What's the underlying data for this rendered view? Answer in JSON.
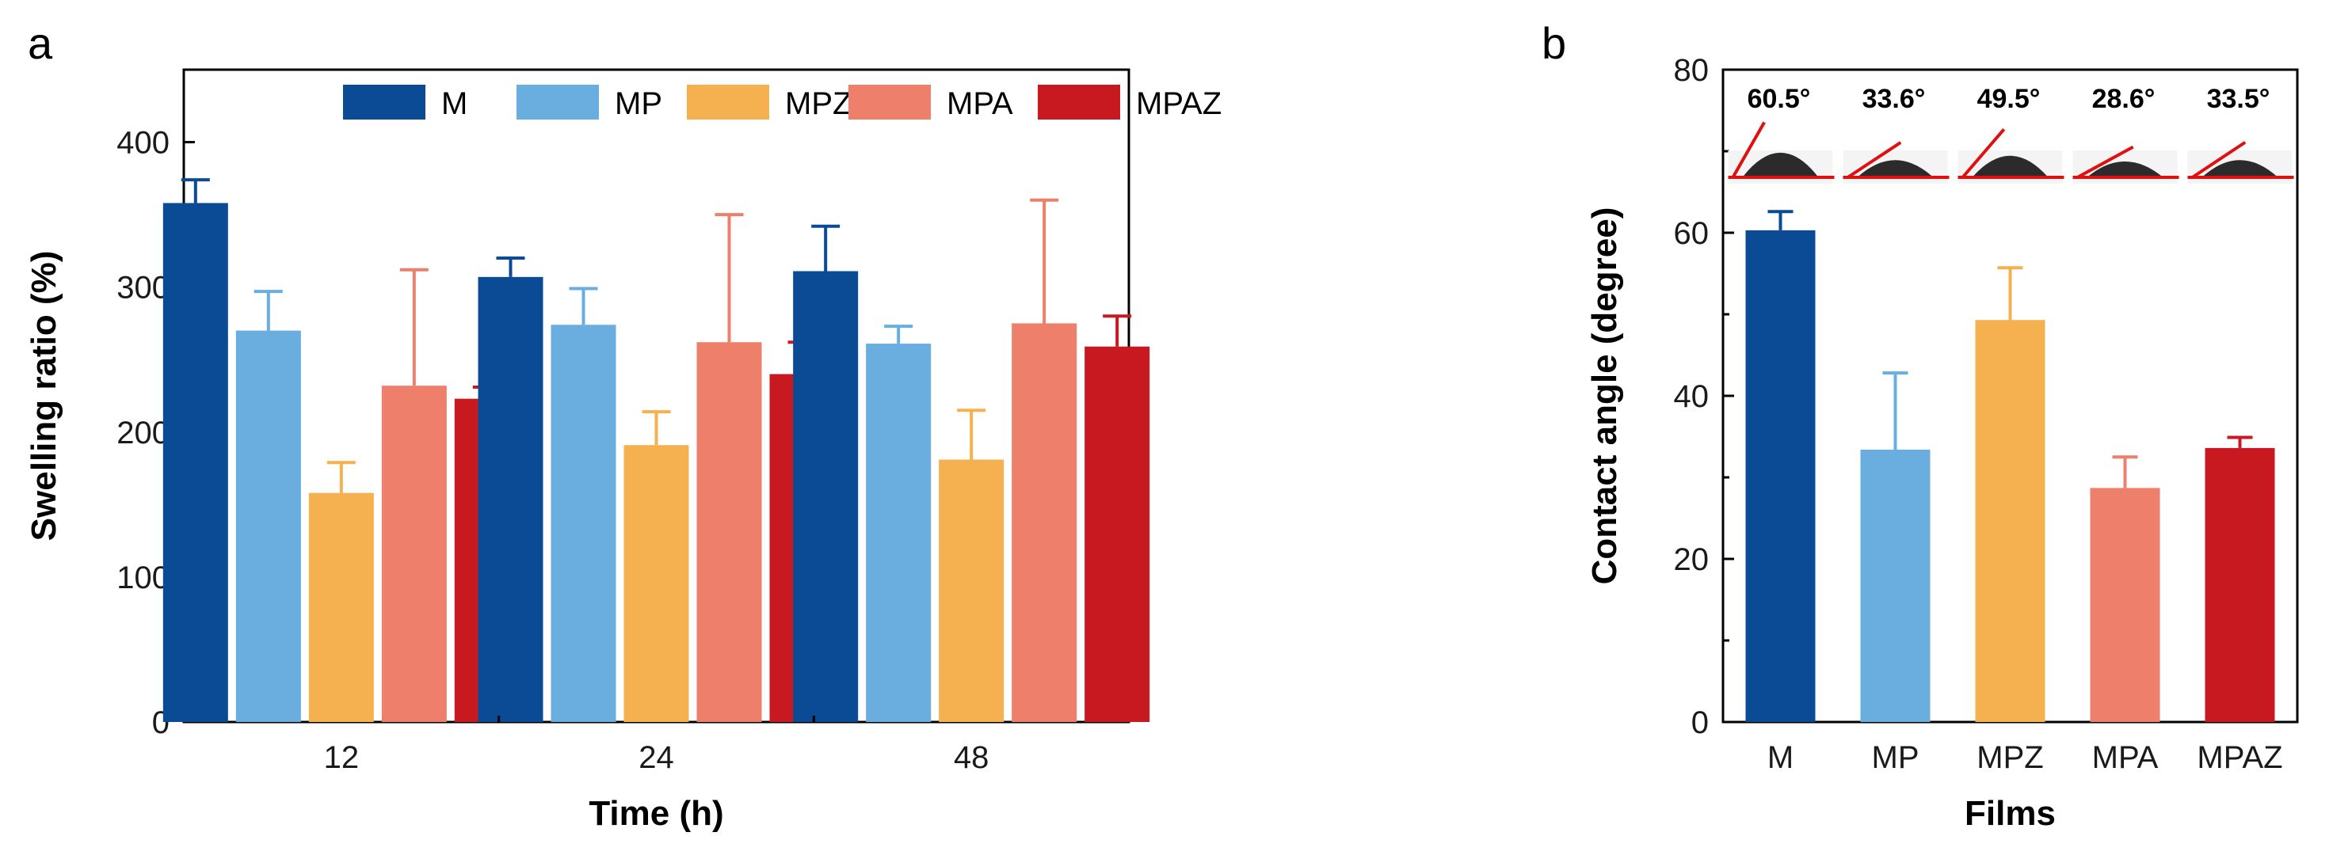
{
  "chart_data": [
    {
      "panel": "a",
      "type": "bar",
      "title": "",
      "xlabel": "Time (h)",
      "ylabel": "Swelling ratio (%)",
      "ylim": [
        0,
        450
      ],
      "yticks": [
        0,
        100,
        200,
        300,
        400
      ],
      "categories": [
        "12",
        "24",
        "48"
      ],
      "legend_position": "top",
      "series": [
        {
          "name": "M",
          "color": "#0b4a94",
          "values": [
            358,
            307,
            311
          ],
          "errors": [
            16,
            13,
            31
          ]
        },
        {
          "name": "MP",
          "color": "#6aaee0",
          "values": [
            270,
            274,
            261
          ],
          "errors": [
            27,
            25,
            12
          ]
        },
        {
          "name": "MPZ",
          "color": "#f5b04f",
          "values": [
            158,
            191,
            181
          ],
          "errors": [
            21,
            23,
            34
          ]
        },
        {
          "name": "MPA",
          "color": "#ee7f6a",
          "values": [
            232,
            262,
            275
          ],
          "errors": [
            80,
            88,
            85
          ]
        },
        {
          "name": "MPAZ",
          "color": "#c81820",
          "values": [
            223,
            240,
            259
          ],
          "errors": [
            8,
            22,
            21
          ]
        }
      ]
    },
    {
      "panel": "b",
      "type": "bar",
      "title": "",
      "xlabel": "Films",
      "ylabel": "Contact angle (degree)",
      "ylim": [
        0,
        80
      ],
      "yticks": [
        0,
        20,
        40,
        60,
        80
      ],
      "categories": [
        "M",
        "MP",
        "MPZ",
        "MPA",
        "MPAZ"
      ],
      "values": [
        60.3,
        33.4,
        49.3,
        28.7,
        33.6
      ],
      "errors": [
        2.3,
        9.4,
        6.4,
        3.8,
        1.3
      ],
      "colors": [
        "#0b4a94",
        "#6aaee0",
        "#f5b04f",
        "#ee7f6a",
        "#c81820"
      ],
      "annotations": [
        "60.5°",
        "33.6°",
        "49.5°",
        "28.6°",
        "33.5°"
      ]
    }
  ]
}
